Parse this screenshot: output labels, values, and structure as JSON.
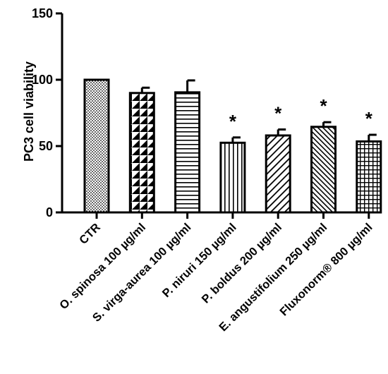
{
  "chart_data": {
    "type": "bar",
    "ylabel": "PC3 cell viability",
    "xlabel": "",
    "title": "",
    "ylim": [
      0,
      150
    ],
    "yticks": [
      0,
      50,
      100,
      150
    ],
    "grid": false,
    "categories": [
      "CTR",
      "O. spinosa 100 µg/ml",
      "S. virga-aurea 100 µg/ml",
      "P. niruri 150 µg/ml",
      "P. boldus 200 µg/ml",
      "E. angustifolium 250 µg/ml",
      "Fluxonorm® 800 µg/ml"
    ],
    "values": [
      100,
      90,
      90.5,
      52.5,
      58,
      64.5,
      53.5
    ],
    "errors": [
      0,
      4,
      9,
      4,
      4.5,
      3.5,
      5
    ],
    "annotations": [
      "",
      "",
      "",
      "*",
      "*",
      "*",
      "*"
    ],
    "patterns": [
      "dots",
      "triangles",
      "horizontal",
      "vertical",
      "diagonal",
      "diagonal-dense",
      "grid"
    ]
  }
}
